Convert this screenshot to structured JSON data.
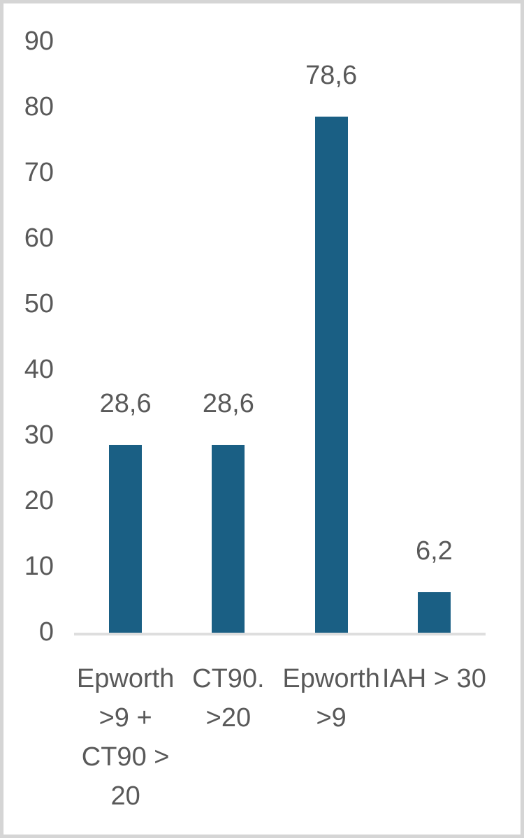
{
  "chart_data": {
    "type": "bar",
    "title": "",
    "xlabel": "",
    "ylabel": "",
    "categories": [
      "Epworth >9 + CT90 > 20",
      "CT90. >20",
      "Epworth >9",
      "IAH > 30"
    ],
    "category_lines": [
      [
        "Epworth",
        ">9 +",
        "CT90 >",
        "20"
      ],
      [
        "CT90.",
        ">20"
      ],
      [
        "Epworth",
        ">9"
      ],
      [
        "IAH > 30"
      ]
    ],
    "values": [
      28.6,
      28.6,
      78.6,
      6.2
    ],
    "value_labels": [
      "28,6",
      "28,6",
      "78,6",
      "6,2"
    ],
    "decimal_separator": ",",
    "ylim": [
      0,
      90
    ],
    "yticks": [
      0,
      10,
      20,
      30,
      40,
      50,
      60,
      70,
      80,
      90
    ],
    "grid": false,
    "legend": false,
    "bar_color": "#1A5F84",
    "text_color": "#595959",
    "axis_line_color": "#DEDEDE",
    "frame_border_color": "#D5D5D5",
    "background_color": "#FFFFFF"
  }
}
